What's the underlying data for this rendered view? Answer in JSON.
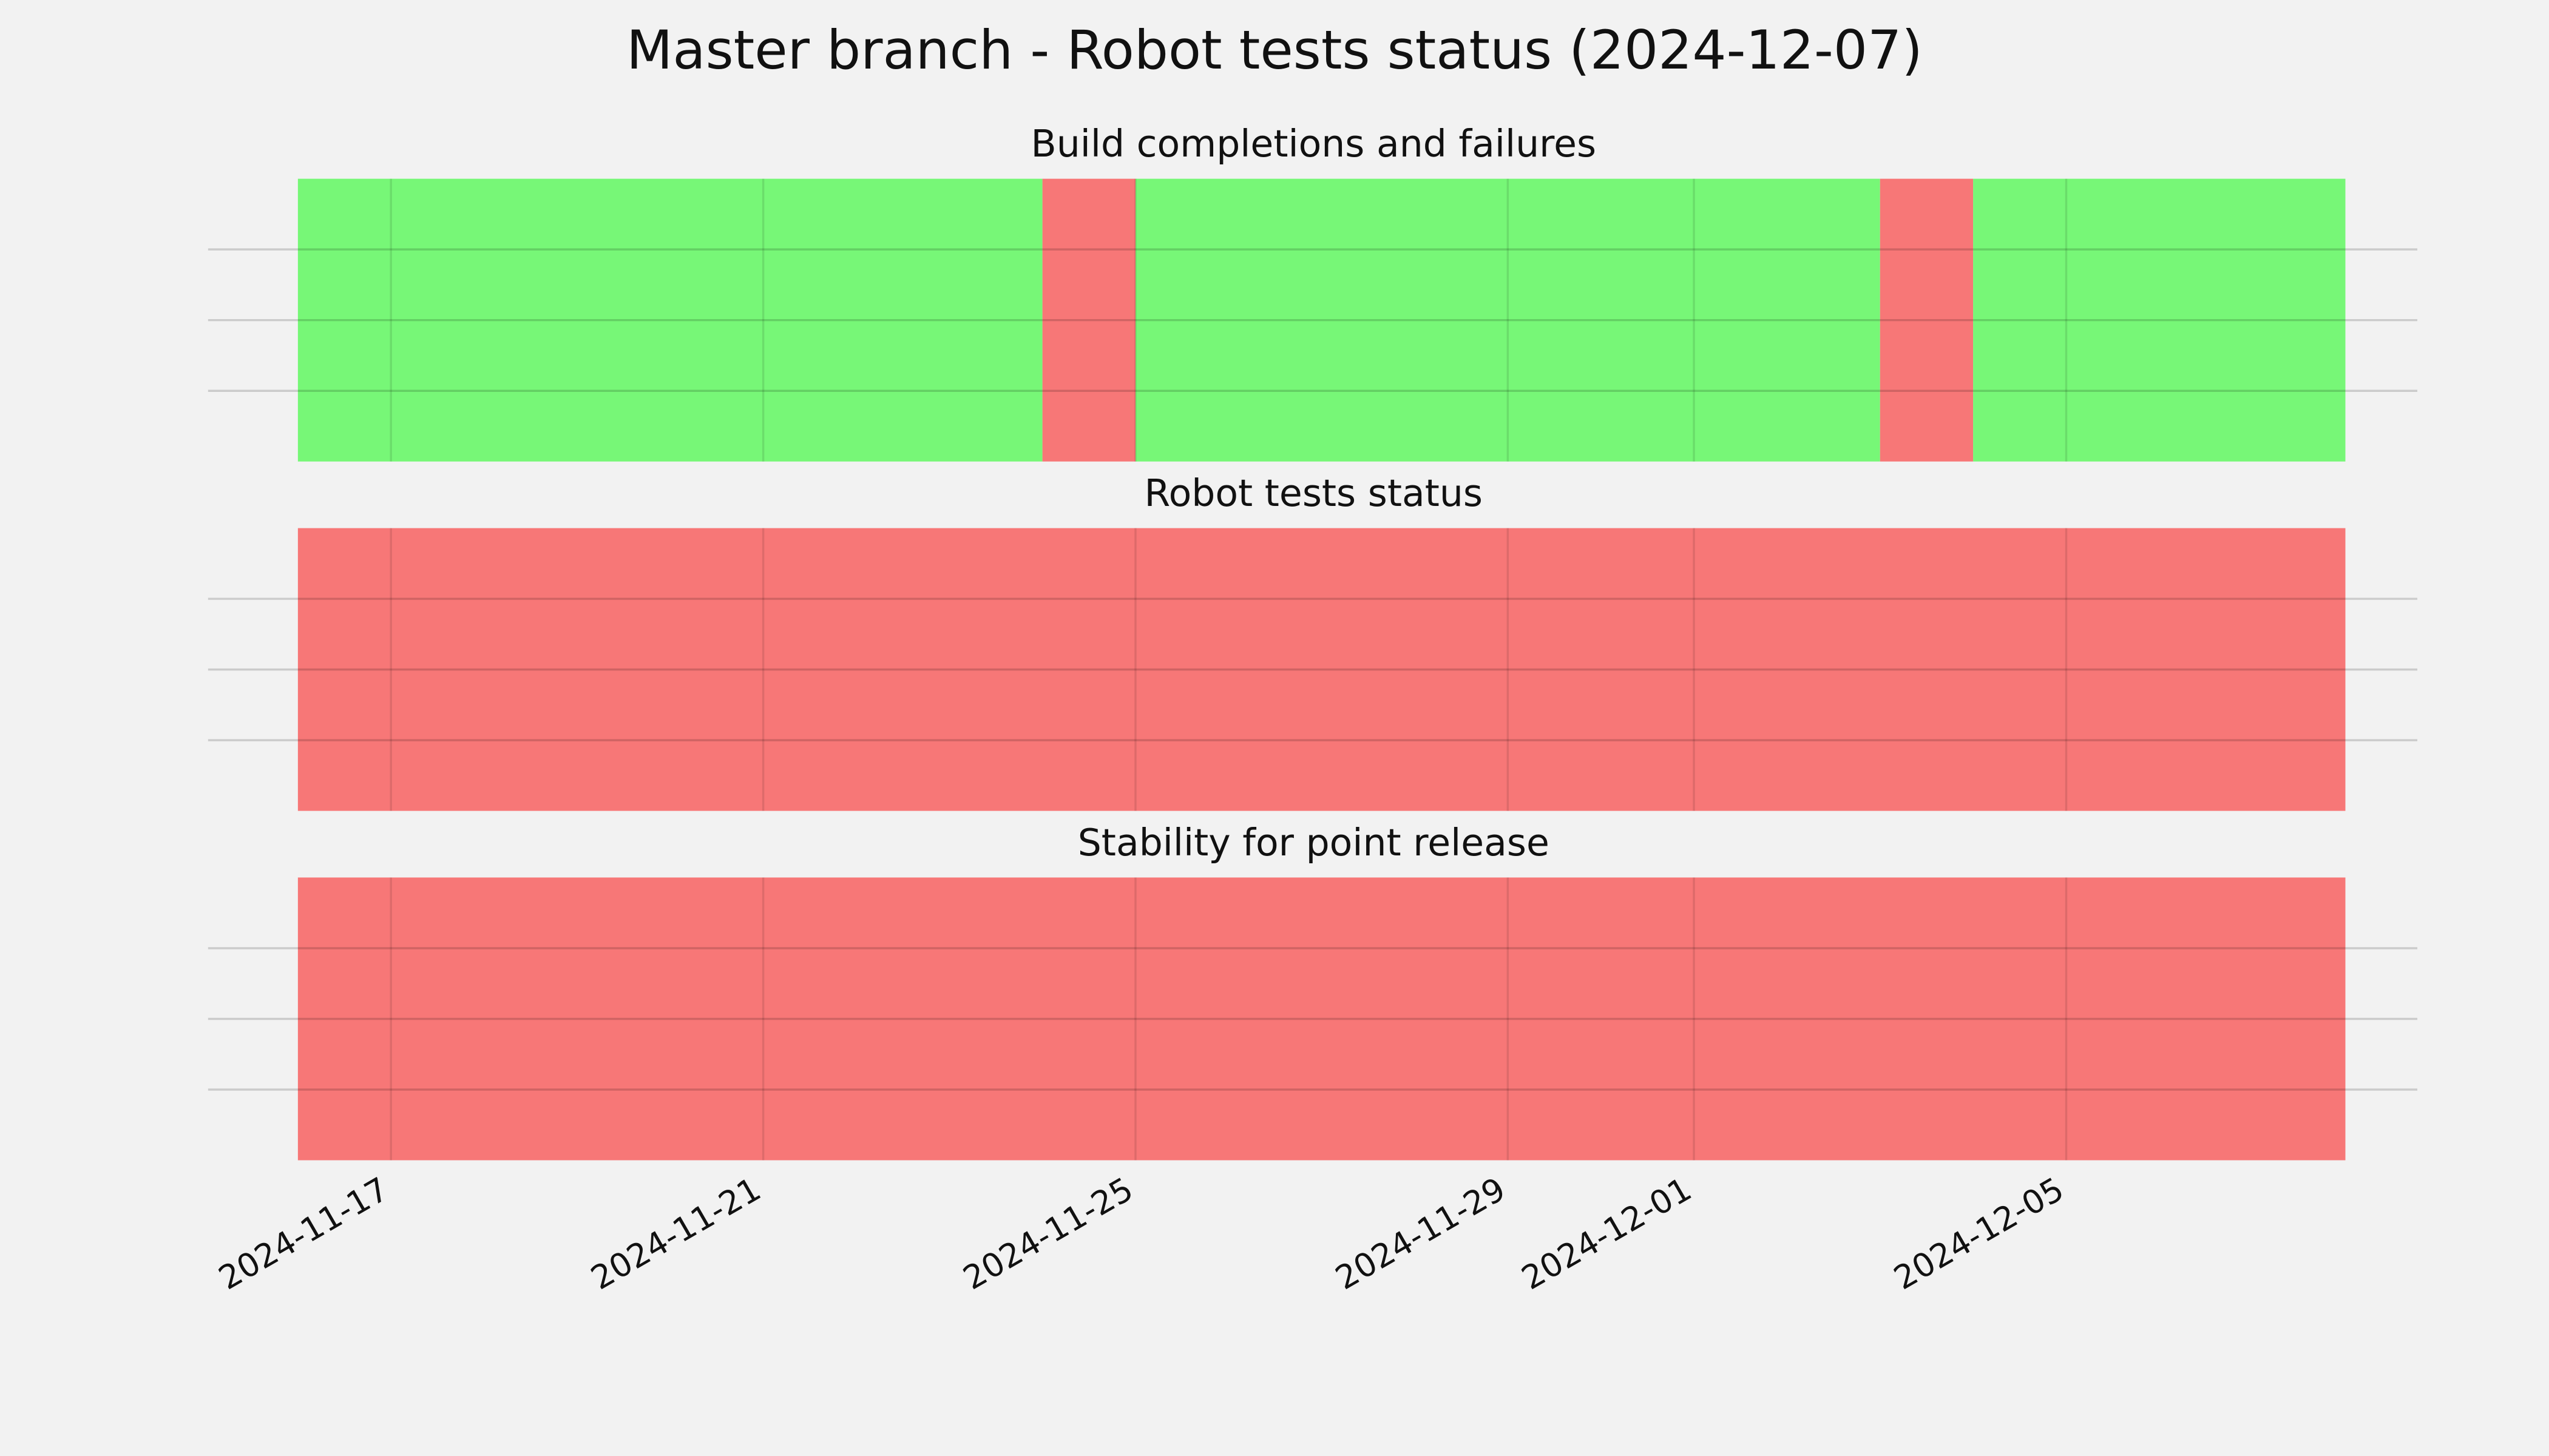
{
  "chart_data": {
    "type": "timeline",
    "title": "Master branch - Robot tests status (2024-12-07)",
    "xlim": [
      "2024-11-15",
      "2024-12-09"
    ],
    "xticks": [
      "2024-11-17",
      "2024-11-21",
      "2024-11-25",
      "2024-11-29",
      "2024-12-01",
      "2024-12-05"
    ],
    "grid": true,
    "panels": [
      {
        "title": "Build completions and failures",
        "ylim": [
          0,
          1
        ],
        "yticks": [
          0.25,
          0.5,
          0.75
        ],
        "segments": [
          {
            "start": "2024-11-16",
            "end": "2024-11-24",
            "color": "#77f777"
          },
          {
            "start": "2024-11-24",
            "end": "2024-11-25",
            "color": "#f77777"
          },
          {
            "start": "2024-11-25",
            "end": "2024-12-03",
            "color": "#77f777"
          },
          {
            "start": "2024-12-03",
            "end": "2024-12-04",
            "color": "#f77777"
          },
          {
            "start": "2024-12-04",
            "end": "2024-12-08",
            "color": "#77f777"
          }
        ]
      },
      {
        "title": "Robot tests status",
        "ylim": [
          0,
          1
        ],
        "yticks": [
          0.25,
          0.5,
          0.75
        ],
        "segments": [
          {
            "start": "2024-11-16",
            "end": "2024-12-08",
            "color": "#f77777"
          }
        ]
      },
      {
        "title": "Stability for point release",
        "ylim": [
          0,
          1
        ],
        "yticks": [
          0.25,
          0.5,
          0.75
        ],
        "segments": [
          {
            "start": "2024-11-16",
            "end": "2024-12-08",
            "color": "#f77777"
          }
        ]
      }
    ]
  }
}
